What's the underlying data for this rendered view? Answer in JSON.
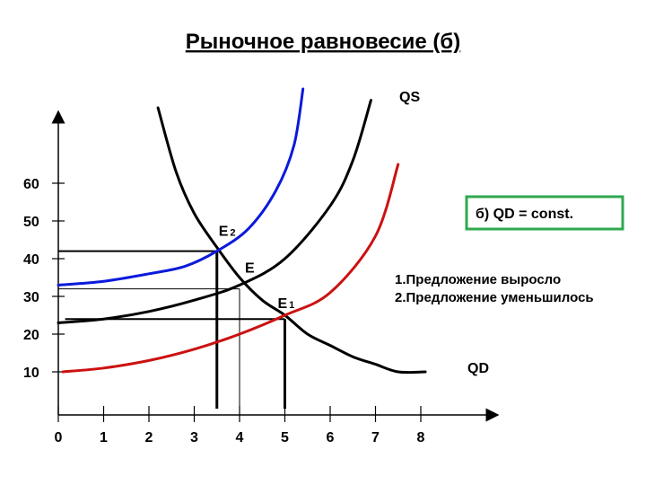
{
  "chart_data": {
    "type": "line",
    "title": "Рыночное равновесие (б)",
    "xlabel": "",
    "ylabel": "",
    "x_ticks": [
      0,
      1,
      2,
      3,
      4,
      5,
      6,
      7,
      8
    ],
    "y_ticks": [
      10,
      20,
      30,
      40,
      50,
      60
    ],
    "series": [
      {
        "name": "QD",
        "color": "#000000",
        "x": [
          2.2,
          2.6,
          3.0,
          3.5,
          4.0,
          4.5,
          5.0,
          5.5,
          6.0,
          6.5,
          7.0,
          7.5,
          8.1
        ],
        "y": [
          80,
          63,
          52,
          43,
          35,
          29,
          25,
          20,
          17,
          14,
          12,
          10,
          10
        ]
      },
      {
        "name": "QS",
        "color": "#000000",
        "x": [
          0,
          1,
          2,
          3,
          4,
          5,
          6,
          6.5,
          6.9
        ],
        "y": [
          23,
          24,
          26,
          29,
          33,
          40,
          54,
          66,
          82
        ]
      },
      {
        "name": "",
        "color": "#0a1adc",
        "x": [
          0,
          1,
          2,
          2.8,
          3.5,
          4.2,
          4.8,
          5.2,
          5.4
        ],
        "y": [
          33,
          34,
          36,
          38,
          42,
          48,
          58,
          70,
          85
        ]
      },
      {
        "name": "",
        "color": "#cc1111",
        "x": [
          0.1,
          1,
          2,
          3,
          4,
          5,
          6,
          7,
          7.5
        ],
        "y": [
          10,
          11,
          13,
          16,
          20,
          25,
          31,
          46,
          65
        ]
      }
    ],
    "points": [
      {
        "label": "E",
        "x": 4.0,
        "y": 32
      },
      {
        "label": "E",
        "sub": "2",
        "x": 3.5,
        "y": 42
      },
      {
        "label": "E",
        "sub": "1",
        "x": 5.0,
        "y": 24
      }
    ],
    "axis_labels": {
      "qs": "QS",
      "qd": "QD"
    },
    "box_text": "б)  QD = const.",
    "box_color": "#2fa84f",
    "notes": [
      "1.Предложение выросло",
      "2.Предложение уменьшилось"
    ],
    "grid": false
  }
}
